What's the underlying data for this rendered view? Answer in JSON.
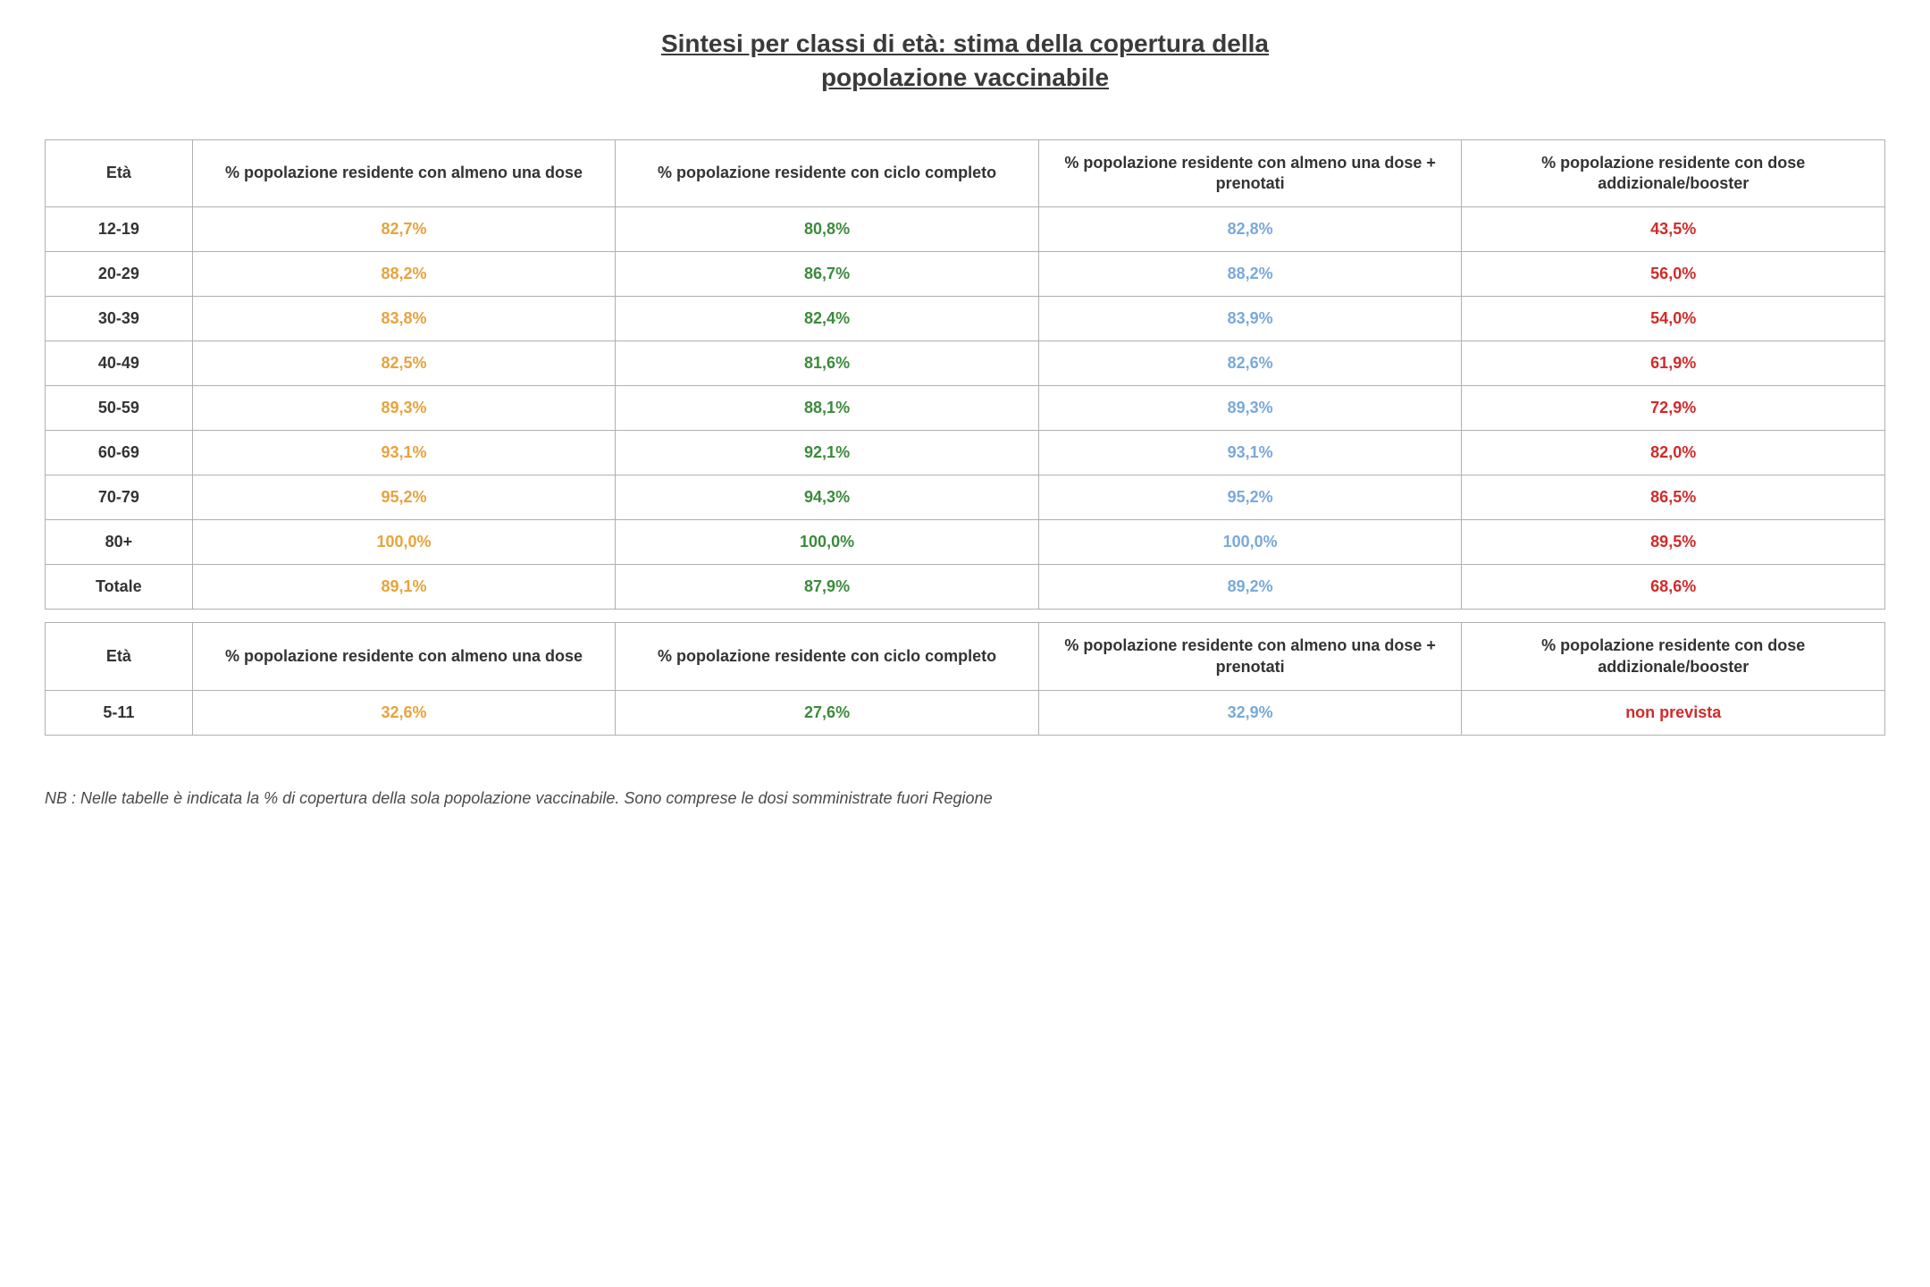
{
  "title_line1": "Sintesi per classi di età: stima della copertura della",
  "title_line2": "popolazione vaccinabile",
  "columns": [
    "Età",
    "% popolazione residente con almeno una dose",
    "% popolazione residente con ciclo completo",
    "% popolazione residente con almeno una dose + prenotati",
    "% popolazione residente con dose addizionale/booster"
  ],
  "colors": {
    "col1": "#e8a33d",
    "col2": "#3c8a3c",
    "col3": "#7aa9d9",
    "col4": "#d22a2a",
    "header_text": "#333333",
    "age_text": "#333333",
    "border": "#b0b0b0",
    "background": "#ffffff"
  },
  "rows": [
    {
      "age": "12-19",
      "c1": "82,7%",
      "c2": "80,8%",
      "c3": "82,8%",
      "c4": "43,5%"
    },
    {
      "age": "20-29",
      "c1": "88,2%",
      "c2": "86,7%",
      "c3": "88,2%",
      "c4": "56,0%"
    },
    {
      "age": "30-39",
      "c1": "83,8%",
      "c2": "82,4%",
      "c3": "83,9%",
      "c4": "54,0%"
    },
    {
      "age": "40-49",
      "c1": "82,5%",
      "c2": "81,6%",
      "c3": "82,6%",
      "c4": "61,9%"
    },
    {
      "age": "50-59",
      "c1": "89,3%",
      "c2": "88,1%",
      "c3": "89,3%",
      "c4": "72,9%"
    },
    {
      "age": "60-69",
      "c1": "93,1%",
      "c2": "92,1%",
      "c3": "93,1%",
      "c4": "82,0%"
    },
    {
      "age": "70-79",
      "c1": "95,2%",
      "c2": "94,3%",
      "c3": "95,2%",
      "c4": "86,5%"
    },
    {
      "age": "80+",
      "c1": "100,0%",
      "c2": "100,0%",
      "c3": "100,0%",
      "c4": "89,5%"
    }
  ],
  "total": {
    "age": "Totale",
    "c1": "89,1%",
    "c2": "87,9%",
    "c3": "89,2%",
    "c4": "68,6%"
  },
  "rows2": [
    {
      "age": "5-11",
      "c1": "32,6%",
      "c2": "27,6%",
      "c3": "32,9%",
      "c4": "non prevista"
    }
  ],
  "footnote": "NB : Nelle tabelle è indicata la % di copertura della sola popolazione vaccinabile. Sono comprese le dosi somministrate fuori Regione"
}
